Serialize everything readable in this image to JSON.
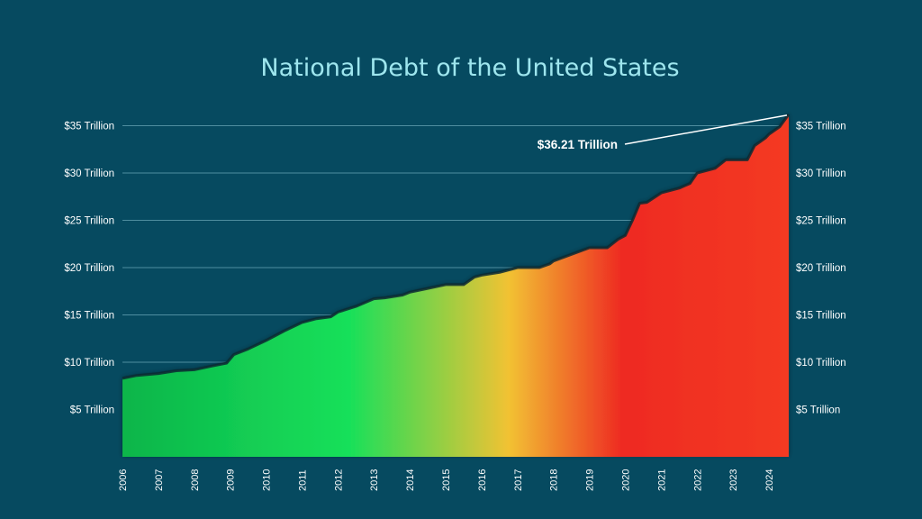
{
  "chart_data": {
    "type": "area",
    "title": "National Debt of the United States",
    "xlabel": "",
    "ylabel": "",
    "x_range": [
      2006,
      2024.55
    ],
    "ylim": [
      0,
      37.5
    ],
    "grid": true,
    "y_ticks": [
      {
        "value": 5,
        "label": "$5 Trillion"
      },
      {
        "value": 10,
        "label": "$10 Trillion"
      },
      {
        "value": 15,
        "label": "$15 Trillion"
      },
      {
        "value": 20,
        "label": "$20 Trillion"
      },
      {
        "value": 25,
        "label": "$25 Trillion"
      },
      {
        "value": 30,
        "label": "$30 Trillion"
      },
      {
        "value": 35,
        "label": "$35 Trillion"
      }
    ],
    "x_ticks": [
      "2006",
      "2007",
      "2008",
      "2009",
      "2010",
      "2011",
      "2012",
      "2013",
      "2014",
      "2015",
      "2016",
      "2017",
      "2018",
      "2019",
      "2020",
      "2021",
      "2022",
      "2023",
      "2024"
    ],
    "series": [
      {
        "values": [
          [
            2006.0,
            8.3
          ],
          [
            2006.4,
            8.6
          ],
          [
            2007.0,
            8.8
          ],
          [
            2007.5,
            9.1
          ],
          [
            2008.0,
            9.2
          ],
          [
            2008.5,
            9.6
          ],
          [
            2008.9,
            9.9
          ],
          [
            2009.1,
            10.8
          ],
          [
            2009.5,
            11.4
          ],
          [
            2010.0,
            12.3
          ],
          [
            2010.5,
            13.3
          ],
          [
            2011.0,
            14.2
          ],
          [
            2011.4,
            14.6
          ],
          [
            2011.8,
            14.8
          ],
          [
            2012.0,
            15.3
          ],
          [
            2012.5,
            15.9
          ],
          [
            2013.0,
            16.7
          ],
          [
            2013.3,
            16.8
          ],
          [
            2013.8,
            17.1
          ],
          [
            2014.0,
            17.4
          ],
          [
            2014.5,
            17.8
          ],
          [
            2015.0,
            18.2
          ],
          [
            2015.5,
            18.2
          ],
          [
            2015.8,
            19.0
          ],
          [
            2016.0,
            19.2
          ],
          [
            2016.5,
            19.5
          ],
          [
            2017.0,
            20.0
          ],
          [
            2017.6,
            20.0
          ],
          [
            2017.9,
            20.4
          ],
          [
            2018.0,
            20.7
          ],
          [
            2018.5,
            21.4
          ],
          [
            2019.0,
            22.1
          ],
          [
            2019.5,
            22.1
          ],
          [
            2019.8,
            23.0
          ],
          [
            2020.0,
            23.4
          ],
          [
            2020.2,
            25.0
          ],
          [
            2020.4,
            26.8
          ],
          [
            2020.6,
            26.9
          ],
          [
            2021.0,
            27.9
          ],
          [
            2021.5,
            28.4
          ],
          [
            2021.8,
            28.9
          ],
          [
            2022.0,
            30.0
          ],
          [
            2022.5,
            30.5
          ],
          [
            2022.8,
            31.4
          ],
          [
            2023.0,
            31.4
          ],
          [
            2023.4,
            31.4
          ],
          [
            2023.6,
            32.9
          ],
          [
            2023.9,
            33.7
          ],
          [
            2024.0,
            34.1
          ],
          [
            2024.3,
            34.9
          ],
          [
            2024.55,
            36.21
          ]
        ]
      }
    ],
    "annotation": {
      "text": "$36.21 Trillion",
      "x": 2024.55,
      "y": 36.21
    },
    "colors": {
      "background": "#064a60",
      "gridline": "#4f8ea0",
      "outline": "#0c2a33",
      "gradient": [
        "#0cb54a",
        "#17e05a",
        "#f2c233",
        "#ee2a22",
        "#f43a24"
      ]
    }
  }
}
